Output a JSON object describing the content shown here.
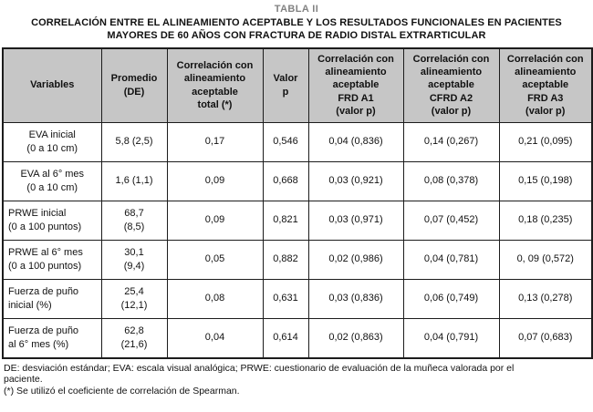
{
  "title": {
    "table_number": "TABLA II",
    "heading": "CORRELACIÓN ENTRE EL ALINEAMIENTO ACEPTABLE Y LOS RESULTADOS FUNCIONALES EN PACIENTES\nMAYORES DE 60 AÑOS CON FRACTURA DE RADIO DISTAL EXTRARTICULAR"
  },
  "colors": {
    "header_bg": "#c6c6c6",
    "border": "#1c1c1c",
    "title_gray": "#828282",
    "text": "#111111"
  },
  "chart_data": {
    "type": "table",
    "title": "CORRELACIÓN ENTRE EL ALINEAMIENTO ACEPTABLE Y LOS RESULTADOS FUNCIONALES EN PACIENTES MAYORES DE 60 AÑOS CON FRACTURA DE RADIO DISTAL EXTRARTICULAR",
    "headers": [
      "Variables",
      "Promedio\n(DE)",
      "Correlación con\nalineamiento\naceptable\ntotal (*)",
      "Valor\np",
      "Correlación con\nalineamiento\naceptable\nFRD A1\n(valor p)",
      "Correlación con\nalineamiento\naceptable\nCFRD A2\n(valor p)",
      "Correlación con\nalineamiento\naceptable\nFRD A3\n(valor p)"
    ],
    "rows": [
      {
        "variable": "EVA inicial\n(0 a 10 cm)",
        "align": "center",
        "cells": [
          "5,8 (2,5)",
          "0,17",
          "0,546",
          "0,04 (0,836)",
          "0,14 (0,267)",
          "0,21 (0,095)"
        ]
      },
      {
        "variable": "EVA al 6° mes\n(0 a 10 cm)",
        "align": "center",
        "cells": [
          "1,6 (1,1)",
          "0,09",
          "0,668",
          "0,03 (0,921)",
          "0,08 (0,378)",
          "0,15 (0,198)"
        ]
      },
      {
        "variable": "PRWE inicial\n(0 a 100 puntos)",
        "align": "left",
        "cells": [
          "68,7\n(8,5)",
          "0,09",
          "0,821",
          "0,03 (0,971)",
          "0,07 (0,452)",
          "0,18 (0,235)"
        ]
      },
      {
        "variable": "PRWE al 6° mes\n(0 a 100 puntos)",
        "align": "left",
        "cells": [
          "30,1\n(9,4)",
          "0,05",
          "0,882",
          "0,02 (0,986)",
          "0,04 (0,781)",
          "0, 09 (0,572)"
        ]
      },
      {
        "variable": "Fuerza de puño\ninicial (%)",
        "align": "left",
        "cells": [
          "25,4\n(12,1)",
          "0,08",
          "0,631",
          "0,03 (0,836)",
          "0,06 (0,749)",
          "0,13 (0,278)"
        ]
      },
      {
        "variable": "Fuerza de puño\nal 6° mes (%)",
        "align": "left",
        "cells": [
          "62,8\n(21,6)",
          "0,04",
          "0,614",
          "0,02 (0,863)",
          "0,04 (0,791)",
          "0,07 (0,683)"
        ]
      }
    ]
  },
  "footnotes": [
    "DE: desviación estándar; EVA: escala visual analógica; PRWE: cuestionario de evaluación de la muñeca valorada por el\npaciente.",
    "(*) Se utilizó el coeficiente de correlación de Spearman."
  ]
}
